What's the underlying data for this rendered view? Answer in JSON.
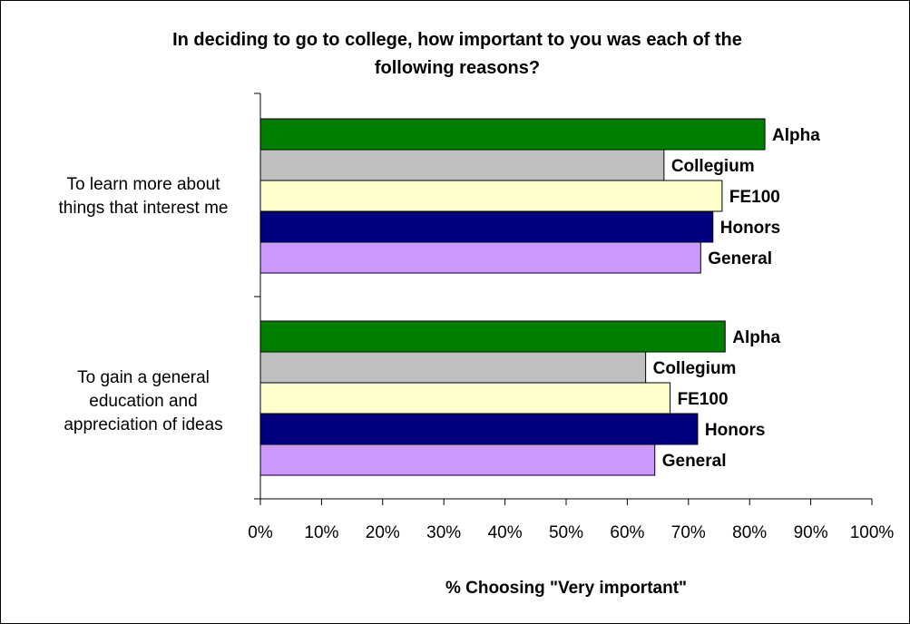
{
  "chart_data": {
    "type": "bar",
    "orientation": "horizontal",
    "title_lines": [
      "In deciding to go to college, how important to you was each of the",
      "following reasons?"
    ],
    "xlabel": "% Choosing \"Very important\"",
    "ylabel": "",
    "xlim": [
      0,
      100
    ],
    "x_ticks": [
      "0%",
      "10%",
      "20%",
      "30%",
      "40%",
      "50%",
      "60%",
      "70%",
      "80%",
      "90%",
      "100%"
    ],
    "grid": false,
    "legend": "none (series names shown as data labels at bar ends)",
    "categories": [
      {
        "label_lines": [
          "To learn more about",
          "things that interest me"
        ]
      },
      {
        "label_lines": [
          "To gain a general",
          "education and",
          "appreciation of ideas"
        ]
      }
    ],
    "series": [
      {
        "name": "Alpha",
        "color": "#008000",
        "values": [
          82.5,
          76
        ]
      },
      {
        "name": "Collegium",
        "color": "#C0C0C0",
        "values": [
          66,
          63
        ]
      },
      {
        "name": "FE100",
        "color": "#FFFFCC",
        "values": [
          75.5,
          67
        ]
      },
      {
        "name": "Honors",
        "color": "#000080",
        "values": [
          74,
          71.5
        ]
      },
      {
        "name": "General",
        "color": "#CC99FF",
        "values": [
          72,
          64.5
        ]
      }
    ]
  }
}
